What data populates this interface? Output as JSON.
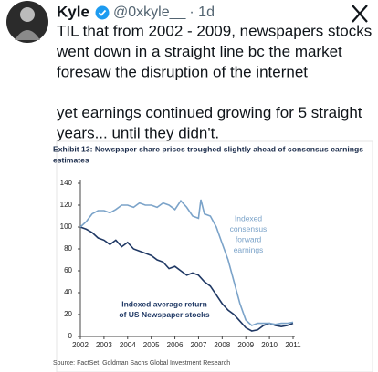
{
  "tweet": {
    "name": "Kyle",
    "handle": "@0xkyle__",
    "time": "· 1d",
    "paragraphs": [
      [
        "TIL that from 2002 - 2009, newspapers stocks",
        "went down in a straight line bc the market",
        "foresaw the disruption of the internet"
      ],
      [
        "yet earnings continued growing for 5 straight",
        "years... until they didn't."
      ]
    ]
  },
  "chart_data": {
    "type": "line",
    "title": [
      "Exhibit 13: Newspaper share prices troughed slightly ahead of consensus earnings",
      "estimates"
    ],
    "xlim": [
      2002,
      2011
    ],
    "xticks": [
      2002,
      2003,
      2004,
      2005,
      2006,
      2007,
      2008,
      2009,
      2010,
      2011
    ],
    "ylim": [
      0,
      140
    ],
    "yticks": [
      0,
      20,
      40,
      60,
      80,
      100,
      120,
      140
    ],
    "series": [
      {
        "name": [
          "Indexed average return",
          "of US Newspaper stocks"
        ],
        "color": "#1f3864",
        "x": [
          2002,
          2002.25,
          2002.5,
          2002.75,
          2003,
          2003.25,
          2003.5,
          2003.75,
          2004,
          2004.25,
          2004.5,
          2004.75,
          2005,
          2005.25,
          2005.5,
          2005.75,
          2006,
          2006.25,
          2006.5,
          2006.75,
          2007,
          2007.25,
          2007.5,
          2007.75,
          2008,
          2008.25,
          2008.5,
          2008.75,
          2009,
          2009.25,
          2009.5,
          2009.75,
          2010,
          2010.25,
          2010.5,
          2010.75,
          2011
        ],
        "values": [
          100,
          98,
          95,
          90,
          88,
          84,
          88,
          82,
          86,
          80,
          78,
          76,
          74,
          70,
          68,
          62,
          64,
          60,
          56,
          58,
          56,
          50,
          46,
          38,
          30,
          24,
          20,
          14,
          8,
          5,
          6,
          10,
          12,
          10,
          9,
          10,
          12
        ]
      },
      {
        "name": [
          "Indexed",
          "consensus",
          "forward",
          "earnings"
        ],
        "color": "#7ba3c9",
        "x": [
          2002,
          2002.25,
          2002.5,
          2002.75,
          2003,
          2003.25,
          2003.5,
          2003.75,
          2004,
          2004.25,
          2004.5,
          2004.75,
          2005,
          2005.25,
          2005.5,
          2005.75,
          2006,
          2006.25,
          2006.5,
          2006.75,
          2007,
          2007.1,
          2007.25,
          2007.5,
          2007.75,
          2008,
          2008.25,
          2008.5,
          2008.75,
          2009,
          2009.25,
          2009.5,
          2009.75,
          2010,
          2010.25,
          2010.5,
          2010.75,
          2011
        ],
        "values": [
          100,
          105,
          112,
          115,
          115,
          113,
          116,
          120,
          120,
          118,
          122,
          120,
          120,
          118,
          122,
          120,
          116,
          124,
          118,
          110,
          108,
          125,
          112,
          110,
          100,
          85,
          70,
          50,
          30,
          15,
          10,
          12,
          12,
          12,
          11,
          12,
          12,
          13
        ]
      }
    ],
    "source": "Source: FactSet, Goldman Sachs Global Investment Research"
  }
}
